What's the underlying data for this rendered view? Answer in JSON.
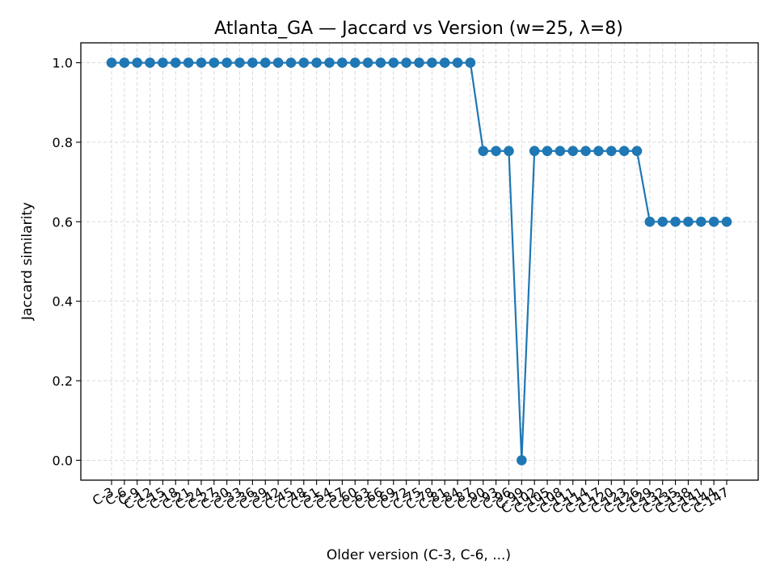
{
  "chart_data": {
    "type": "line",
    "title": "Atlanta_GA — Jaccard vs Version (w=25, λ=8)",
    "xlabel": "Older version (C-3, C-6, ...)",
    "ylabel": "Jaccard similarity",
    "ylim": [
      -0.05,
      1.05
    ],
    "yticks": [
      0.0,
      0.2,
      0.4,
      0.6,
      0.8,
      1.0
    ],
    "ytick_labels": [
      "0.0",
      "0.2",
      "0.4",
      "0.6",
      "0.8",
      "1.0"
    ],
    "grid": true,
    "color": "#1f77b4",
    "categories": [
      "C-3",
      "C-6",
      "C-9",
      "C-12",
      "C-15",
      "C-18",
      "C-21",
      "C-24",
      "C-27",
      "C-30",
      "C-33",
      "C-36",
      "C-39",
      "C-42",
      "C-45",
      "C-48",
      "C-51",
      "C-54",
      "C-57",
      "C-60",
      "C-63",
      "C-66",
      "C-69",
      "C-72",
      "C-75",
      "C-78",
      "C-81",
      "C-84",
      "C-87",
      "C-90",
      "C-93",
      "C-96",
      "C-99",
      "C-102",
      "C-105",
      "C-108",
      "C-111",
      "C-114",
      "C-117",
      "C-120",
      "C-123",
      "C-126",
      "C-129",
      "C-132",
      "C-135",
      "C-138",
      "C-141",
      "C-144",
      "C-147"
    ],
    "values": [
      1.0,
      1.0,
      1.0,
      1.0,
      1.0,
      1.0,
      1.0,
      1.0,
      1.0,
      1.0,
      1.0,
      1.0,
      1.0,
      1.0,
      1.0,
      1.0,
      1.0,
      1.0,
      1.0,
      1.0,
      1.0,
      1.0,
      1.0,
      1.0,
      1.0,
      1.0,
      1.0,
      1.0,
      1.0,
      0.778,
      0.778,
      0.778,
      0.0,
      0.778,
      0.778,
      0.778,
      0.778,
      0.778,
      0.778,
      0.778,
      0.778,
      0.778,
      0.6,
      0.6,
      0.6,
      0.6,
      0.6,
      0.6,
      0.6
    ]
  }
}
